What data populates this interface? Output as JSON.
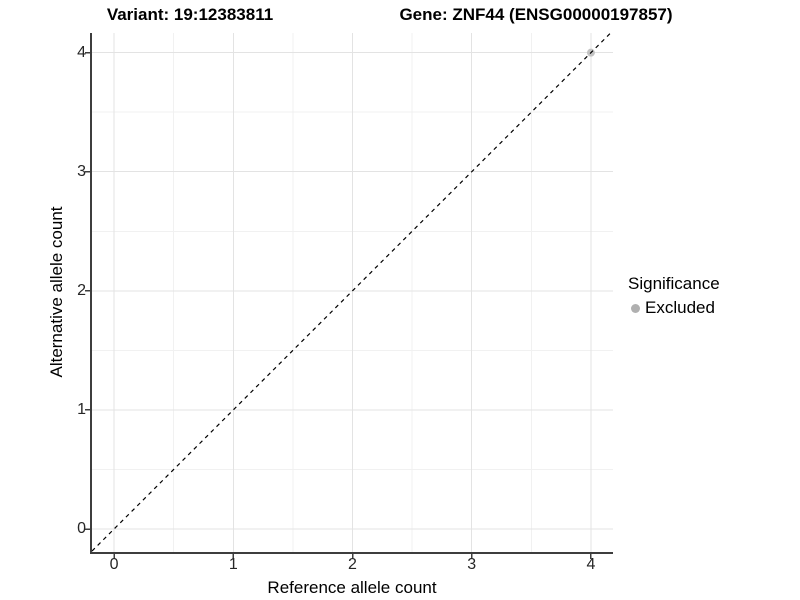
{
  "colors": {
    "background": "#ffffff",
    "grid_major": "#e3e3e3",
    "grid_minor": "#f1f1f1",
    "axis_line": "#3d3d3d",
    "tick_mark": "#3d3d3d",
    "tick_text": "#262626",
    "point_excluded": "#c3c3c3",
    "legend_dot": "#b0b0b0",
    "identity_line": "#000000"
  },
  "chart_data": {
    "type": "scatter",
    "title_left": "Variant: 19:12383811",
    "title_right": "Gene: ZNF44 (ENSG00000197857)",
    "xlabel": "Reference allele count",
    "ylabel": "Alternative allele count",
    "xlim": [
      -0.185,
      4.185
    ],
    "ylim": [
      -0.193,
      4.165
    ],
    "x_ticks": [
      0,
      1,
      2,
      3,
      4
    ],
    "y_ticks": [
      0,
      1,
      2,
      3,
      4
    ],
    "x_minor_ticks": [
      0.5,
      1.5,
      2.5,
      3.5
    ],
    "y_minor_ticks": [
      0.5,
      1.5,
      2.5,
      3.5
    ],
    "grid": true,
    "points": [
      {
        "x": 4,
        "y": 4,
        "significance": "Excluded"
      }
    ],
    "reference_line": {
      "type": "identity",
      "equation": "y = x",
      "style": "dashed"
    },
    "legend": {
      "title": "Significance",
      "position": "right",
      "items": [
        {
          "label": "Excluded"
        }
      ]
    }
  }
}
